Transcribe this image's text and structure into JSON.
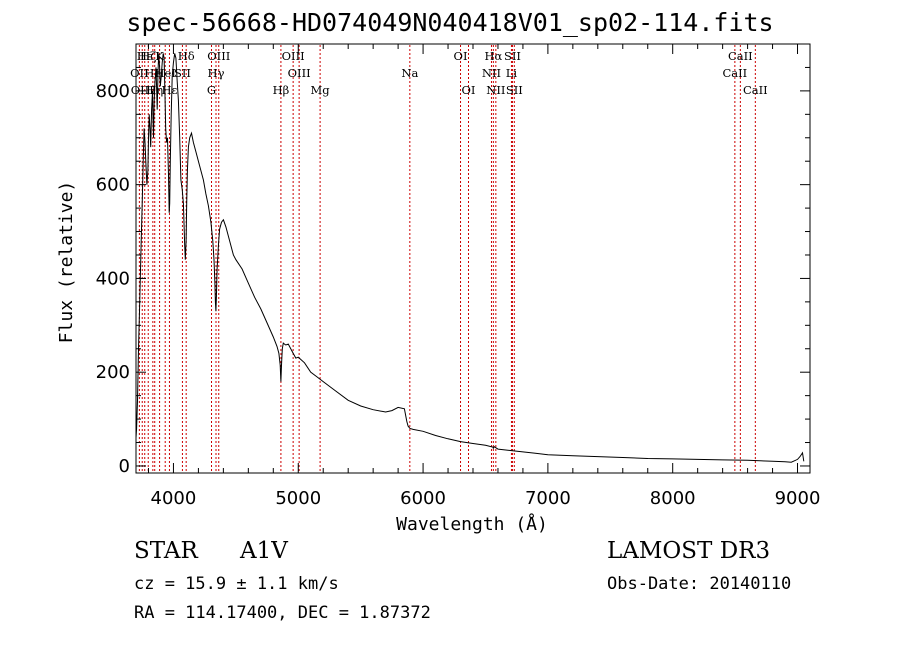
{
  "chart_data": {
    "type": "line",
    "title": "spec-56668-HD074049N040418V01_sp02-114.fits",
    "xlabel": "Wavelength (Å)",
    "ylabel": "Flux (relative)",
    "xlim": [
      3700,
      9100
    ],
    "ylim": [
      -15,
      900
    ],
    "xticks": [
      4000,
      5000,
      6000,
      7000,
      8000,
      9000
    ],
    "yticks": [
      0,
      200,
      400,
      600,
      800
    ],
    "series": [
      {
        "name": "flux",
        "x": [
          3700,
          3705,
          3712,
          3720,
          3728,
          3735,
          3742,
          3750,
          3758,
          3765,
          3772,
          3780,
          3787,
          3795,
          3800,
          3806,
          3812,
          3818,
          3825,
          3832,
          3836,
          3840,
          3846,
          3852,
          3860,
          3866,
          3870,
          3876,
          3882,
          3889,
          3895,
          3902,
          3910,
          3918,
          3925,
          3932,
          3938,
          3945,
          3952,
          3960,
          3966,
          3970,
          3975,
          3982,
          3990,
          4000,
          4010,
          4020,
          4030,
          4040,
          4050,
          4060,
          4070,
          4080,
          4090,
          4095,
          4101,
          4106,
          4112,
          4120,
          4130,
          4145,
          4160,
          4180,
          4200,
          4220,
          4240,
          4260,
          4280,
          4300,
          4315,
          4325,
          4332,
          4336,
          4340,
          4344,
          4350,
          4360,
          4370,
          4385,
          4400,
          4420,
          4440,
          4460,
          4480,
          4500,
          4550,
          4600,
          4650,
          4700,
          4750,
          4800,
          4830,
          4845,
          4855,
          4861,
          4866,
          4872,
          4880,
          4890,
          4900,
          4920,
          4950,
          4980,
          5000,
          5050,
          5100,
          5150,
          5200,
          5300,
          5400,
          5500,
          5600,
          5700,
          5750,
          5800,
          5850,
          5870,
          5880,
          5895,
          5920,
          6000,
          6100,
          6200,
          6300,
          6400,
          6500,
          6560,
          6563,
          6570,
          6600,
          6700,
          6800,
          6900,
          7000,
          7200,
          7400,
          7600,
          7800,
          8000,
          8200,
          8400,
          8600,
          8800,
          8900,
          8950,
          9000,
          9020,
          9040,
          9050
        ],
        "y": [
          60,
          80,
          140,
          250,
          330,
          410,
          480,
          560,
          650,
          720,
          690,
          640,
          600,
          630,
          700,
          750,
          720,
          680,
          760,
          800,
          740,
          700,
          780,
          820,
          850,
          800,
          760,
          840,
          880,
          850,
          810,
          830,
          860,
          880,
          870,
          790,
          720,
          690,
          700,
          620,
          540,
          560,
          650,
          750,
          830,
          860,
          880,
          870,
          820,
          780,
          700,
          610,
          590,
          560,
          470,
          440,
          480,
          560,
          630,
          680,
          700,
          710,
          690,
          670,
          650,
          630,
          610,
          580,
          555,
          520,
          480,
          440,
          390,
          350,
          330,
          360,
          420,
          470,
          505,
          520,
          525,
          510,
          490,
          470,
          450,
          440,
          420,
          390,
          360,
          335,
          305,
          275,
          255,
          240,
          215,
          180,
          215,
          250,
          262,
          260,
          258,
          260,
          245,
          230,
          232,
          220,
          200,
          190,
          180,
          160,
          140,
          128,
          120,
          115,
          118,
          125,
          122,
          95,
          85,
          80,
          78,
          74,
          65,
          58,
          52,
          48,
          44,
          40,
          38,
          41,
          36,
          33,
          30,
          27,
          24,
          22,
          20,
          18,
          16,
          15,
          14,
          13,
          12,
          10,
          9,
          8,
          14,
          20,
          28,
          10
        ]
      }
    ],
    "line_markers": [
      {
        "label": "Hε",
        "wavelength": 3770,
        "row": 0
      },
      {
        "label": "OII",
        "wavelength": 3727,
        "row": 1
      },
      {
        "label": "OIII",
        "wavelength": 3750,
        "row": 2
      },
      {
        "label": "Hζ",
        "wavelength": 3798,
        "row": 0
      },
      {
        "label": "He",
        "wavelength": 3835,
        "row": 1
      },
      {
        "label": "Hη",
        "wavelength": 3850,
        "row": 2
      },
      {
        "label": "K",
        "wavelength": 3889,
        "row": 0
      },
      {
        "label": "HeI",
        "wavelength": 3934,
        "row": 1
      },
      {
        "label": "Hε",
        "wavelength": 3968,
        "row": 2
      },
      {
        "label": "Hδ",
        "wavelength": 4102,
        "row": 0
      },
      {
        "label": "SII",
        "wavelength": 4072,
        "row": 1
      },
      {
        "label": "OIII",
        "wavelength": 4363,
        "row": 0
      },
      {
        "label": "Hγ",
        "wavelength": 4341,
        "row": 1
      },
      {
        "label": "G",
        "wavelength": 4305,
        "row": 2
      },
      {
        "label": "Hβ",
        "wavelength": 4861,
        "row": 2
      },
      {
        "label": "OIII",
        "wavelength": 4959,
        "row": 0
      },
      {
        "label": "OIII",
        "wavelength": 5007,
        "row": 1
      },
      {
        "label": "Mg",
        "wavelength": 5175,
        "row": 2
      },
      {
        "label": "Na",
        "wavelength": 5894,
        "row": 1
      },
      {
        "label": "OI",
        "wavelength": 6300,
        "row": 0
      },
      {
        "label": "OI",
        "wavelength": 6364,
        "row": 2
      },
      {
        "label": "Hα",
        "wavelength": 6563,
        "row": 0
      },
      {
        "label": "NII",
        "wavelength": 6548,
        "row": 1
      },
      {
        "label": "NII",
        "wavelength": 6583,
        "row": 2
      },
      {
        "label": "SII",
        "wavelength": 6716,
        "row": 0
      },
      {
        "label": "Li",
        "wavelength": 6708,
        "row": 1
      },
      {
        "label": "SII",
        "wavelength": 6731,
        "row": 2
      },
      {
        "label": "CaII",
        "wavelength": 8542,
        "row": 0
      },
      {
        "label": "CaII",
        "wavelength": 8498,
        "row": 1
      },
      {
        "label": "CaII",
        "wavelength": 8662,
        "row": 2
      }
    ],
    "line_color": "#000000",
    "marker_color": "#cc0000",
    "grid": false
  },
  "info": {
    "object_class": "STAR",
    "subclass": "A1V",
    "survey": "LAMOST DR3",
    "cz": "cz = 15.9 ± 1.1 km/s",
    "obs_date": "Obs-Date: 20140110",
    "radec": "RA = 114.17400, DEC =    1.87372"
  }
}
